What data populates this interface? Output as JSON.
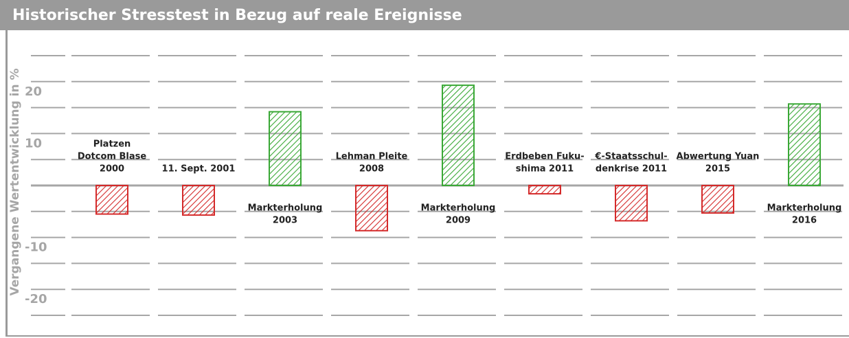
{
  "chart_data": {
    "type": "bar",
    "title": "Historischer Stresstest in Bezug auf reale Ereignisse",
    "y_label": "Vergangene Wertentwicklung in %",
    "categories": [
      [
        "Platzen",
        "Dotcom Blase",
        "2000"
      ],
      [
        "11. Sept. 2001"
      ],
      [
        "Markterholung",
        "2003"
      ],
      [
        "Lehman Pleite",
        "2008"
      ],
      [
        "Markterholung",
        "2009"
      ],
      [
        "Erdbeben Fuku-",
        "shima 2011"
      ],
      [
        "€-Staatsschul-",
        "denkrise 2011"
      ],
      [
        "Abwertung Yuan",
        "2015"
      ],
      [
        "Markterholung",
        "2016"
      ]
    ],
    "values": [
      -5.5,
      -5.7,
      14.2,
      -8.7,
      19.3,
      -1.6,
      -6.8,
      -5.3,
      15.7
    ],
    "colors": [
      "#d42a2a",
      "#d42a2a",
      "#3aa836",
      "#d42a2a",
      "#3aa836",
      "#d42a2a",
      "#d42a2a",
      "#d42a2a",
      "#3aa836"
    ],
    "ylim": [
      -25,
      25
    ],
    "yticks": [
      -20,
      -10,
      10,
      20
    ],
    "grid_yticks": [
      -25,
      -20,
      -15,
      -10,
      -5,
      5,
      10,
      15,
      20,
      25
    ],
    "grid": true
  }
}
